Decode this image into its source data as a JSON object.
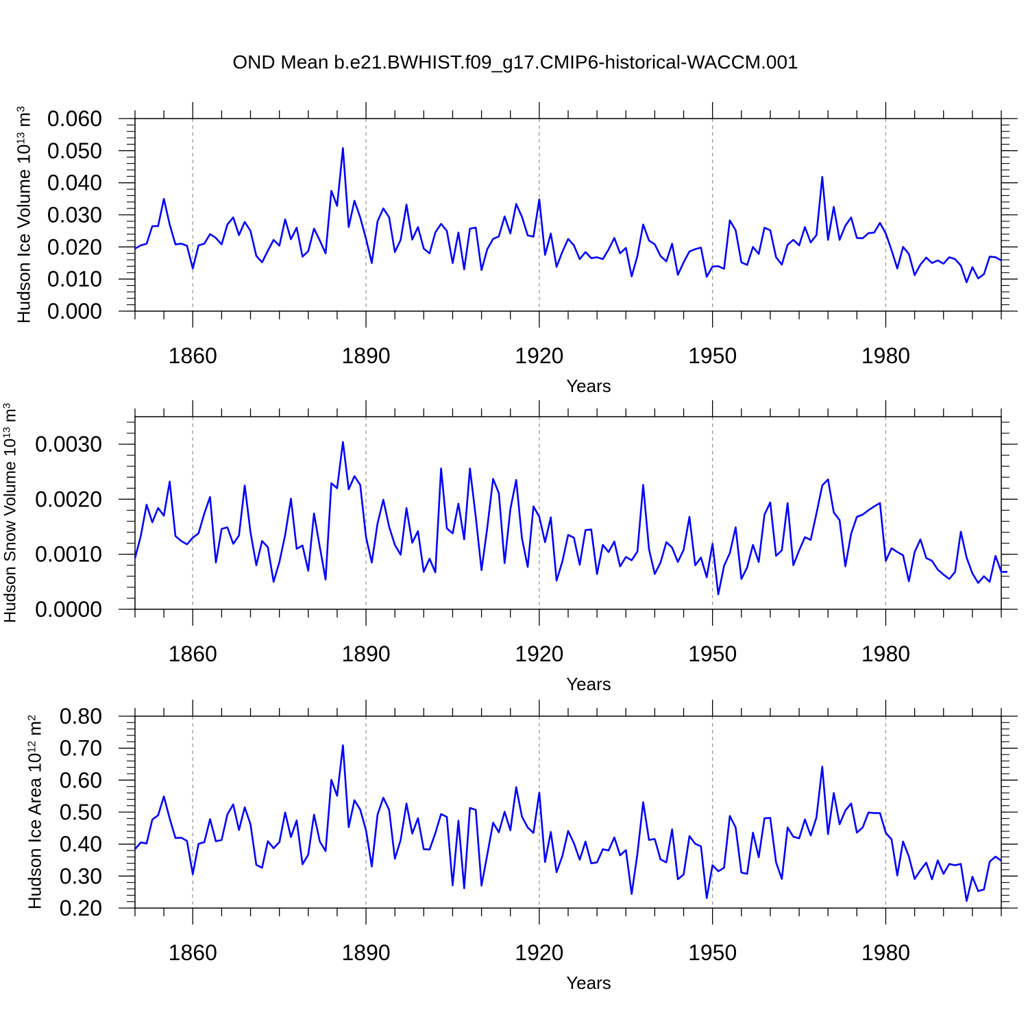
{
  "figure_title": "OND Mean b.e21.BWHIST.f09_g17.CMIP6-historical-WACCM.001",
  "line_color": "#0000ff",
  "grid_color": "#999999",
  "chart_data": [
    {
      "type": "line",
      "title": "",
      "xlabel": "Years",
      "ylabel": "Hudson Ice Volume 10",
      "ylabel_exp": "13",
      "ylabel_unit": "m",
      "ylabel_unit_exp": "3",
      "x_start": 1850,
      "x_step": 1,
      "xlim": [
        1850,
        2000
      ],
      "ylim": [
        0.0,
        0.06
      ],
      "xticks": [
        1860,
        1890,
        1920,
        1950,
        1980
      ],
      "xtick_labels": [
        "1860",
        "1890",
        "1920",
        "1950",
        "1980"
      ],
      "yticks": [
        0.0,
        0.01,
        0.02,
        0.03,
        0.04,
        0.05,
        0.06
      ],
      "ytick_labels": [
        "0.000",
        "0.010",
        "0.020",
        "0.030",
        "0.040",
        "0.050",
        "0.060"
      ],
      "grid": "vertical dashed at major x ticks",
      "series": [
        {
          "values": [
            0.0195,
            0.0205,
            0.021,
            0.0265,
            0.0265,
            0.035,
            0.027,
            0.0208,
            0.021,
            0.0204,
            0.0133,
            0.0205,
            0.021,
            0.024,
            0.0228,
            0.0208,
            0.027,
            0.0292,
            0.0237,
            0.0278,
            0.025,
            0.0172,
            0.0152,
            0.0188,
            0.0222,
            0.0204,
            0.0286,
            0.0224,
            0.026,
            0.017,
            0.0187,
            0.0257,
            0.022,
            0.018,
            0.0375,
            0.0328,
            0.0508,
            0.0262,
            0.0344,
            0.0292,
            0.0225,
            0.015,
            0.028,
            0.032,
            0.0292,
            0.0184,
            0.0222,
            0.0332,
            0.0223,
            0.0262,
            0.0195,
            0.018,
            0.0245,
            0.0272,
            0.025,
            0.015,
            0.0245,
            0.013,
            0.0257,
            0.026,
            0.0128,
            0.0193,
            0.0225,
            0.0233,
            0.0295,
            0.0242,
            0.0334,
            0.0294,
            0.0236,
            0.0232,
            0.0348,
            0.0175,
            0.0242,
            0.0138,
            0.0185,
            0.0225,
            0.0205,
            0.0162,
            0.0184,
            0.0165,
            0.0168,
            0.0162,
            0.0192,
            0.0228,
            0.018,
            0.0197,
            0.0108,
            0.0172,
            0.027,
            0.022,
            0.0208,
            0.0172,
            0.0155,
            0.021,
            0.0113,
            0.0152,
            0.0186,
            0.0193,
            0.0198,
            0.0107,
            0.0139,
            0.014,
            0.0132,
            0.0283,
            0.0252,
            0.0152,
            0.0144,
            0.02,
            0.0178,
            0.026,
            0.0252,
            0.0168,
            0.0145,
            0.0207,
            0.0222,
            0.0205,
            0.0262,
            0.0214,
            0.0237,
            0.0418,
            0.0222,
            0.0325,
            0.0222,
            0.0266,
            0.0292,
            0.0228,
            0.0227,
            0.0243,
            0.0245,
            0.0275,
            0.0242,
            0.019,
            0.0133,
            0.02,
            0.0178,
            0.0112,
            0.0145,
            0.0167,
            0.015,
            0.0158,
            0.0148,
            0.0168,
            0.0162,
            0.0142,
            0.009,
            0.0137,
            0.0102,
            0.0115,
            0.017,
            0.0168,
            0.0158
          ]
        }
      ]
    },
    {
      "type": "line",
      "title": "",
      "xlabel": "Years",
      "ylabel": "Hudson Snow Volume 10",
      "ylabel_exp": "13",
      "ylabel_unit": "m",
      "ylabel_unit_exp": "3",
      "x_start": 1850,
      "x_step": 1,
      "xlim": [
        1850,
        2000
      ],
      "ylim": [
        0.0,
        0.0035
      ],
      "xticks": [
        1860,
        1890,
        1920,
        1950,
        1980
      ],
      "xtick_labels": [
        "1860",
        "1890",
        "1920",
        "1950",
        "1980"
      ],
      "yticks": [
        0.0,
        0.001,
        0.002,
        0.003
      ],
      "ytick_labels": [
        "0.0000",
        "0.0010",
        "0.0020",
        "0.0030"
      ],
      "grid": "vertical dashed at major x ticks",
      "series": [
        {
          "values": [
            0.00093,
            0.00133,
            0.0019,
            0.00158,
            0.00184,
            0.0017,
            0.00232,
            0.00133,
            0.00124,
            0.00118,
            0.0013,
            0.00138,
            0.00174,
            0.00204,
            0.00085,
            0.00146,
            0.00149,
            0.00119,
            0.00134,
            0.00225,
            0.0014,
            0.0008,
            0.00124,
            0.00113,
            0.0005,
            0.00086,
            0.00135,
            0.00201,
            0.0011,
            0.00116,
            0.0007,
            0.00174,
            0.00113,
            0.00054,
            0.00229,
            0.0022,
            0.00304,
            0.00218,
            0.00242,
            0.00226,
            0.00131,
            0.00085,
            0.00156,
            0.00199,
            0.0015,
            0.00117,
            0.00099,
            0.00184,
            0.00121,
            0.00142,
            0.00068,
            0.00092,
            0.00067,
            0.00256,
            0.00147,
            0.00138,
            0.00192,
            0.00127,
            0.00256,
            0.00168,
            0.00071,
            0.00148,
            0.00237,
            0.00211,
            0.00084,
            0.00182,
            0.00235,
            0.00129,
            0.00077,
            0.00187,
            0.00168,
            0.00122,
            0.00167,
            0.00052,
            0.00087,
            0.00135,
            0.0013,
            0.00081,
            0.00144,
            0.00145,
            0.00064,
            0.00117,
            0.00104,
            0.00123,
            0.00078,
            0.00095,
            0.00089,
            0.00105,
            0.00226,
            0.00109,
            0.00064,
            0.00085,
            0.00122,
            0.00112,
            0.00086,
            0.00108,
            0.00168,
            0.0008,
            0.00094,
            0.00058,
            0.00119,
            0.00027,
            0.00079,
            0.00102,
            0.00149,
            0.00055,
            0.00076,
            0.00117,
            0.00086,
            0.00172,
            0.00194,
            0.00097,
            0.00107,
            0.00193,
            0.0008,
            0.00107,
            0.00131,
            0.00126,
            0.00174,
            0.00225,
            0.00236,
            0.00176,
            0.00162,
            0.00078,
            0.00137,
            0.00168,
            0.00172,
            0.0018,
            0.00187,
            0.00193,
            0.00088,
            0.00111,
            0.00104,
            0.00098,
            0.00051,
            0.00104,
            0.00127,
            0.00093,
            0.00088,
            0.00072,
            0.00063,
            0.00055,
            0.00068,
            0.00141,
            0.00094,
            0.00065,
            0.00048,
            0.0006,
            0.0005,
            0.00097,
            0.00068,
            0.00068
          ]
        }
      ]
    },
    {
      "type": "line",
      "title": "",
      "xlabel": "Years",
      "ylabel": "Hudson Ice Area 10",
      "ylabel_exp": "12",
      "ylabel_unit": "m",
      "ylabel_unit_exp": "2",
      "x_start": 1850,
      "x_step": 1,
      "xlim": [
        1850,
        2000
      ],
      "ylim": [
        0.2,
        0.8
      ],
      "xticks": [
        1860,
        1890,
        1920,
        1950,
        1980
      ],
      "xtick_labels": [
        "1860",
        "1890",
        "1920",
        "1950",
        "1980"
      ],
      "yticks": [
        0.2,
        0.3,
        0.4,
        0.5,
        0.6,
        0.7,
        0.8
      ],
      "ytick_labels": [
        "0.20",
        "0.30",
        "0.40",
        "0.50",
        "0.60",
        "0.70",
        "0.80"
      ],
      "grid": "vertical dashed at major x ticks",
      "series": [
        {
          "values": [
            0.384,
            0.405,
            0.402,
            0.477,
            0.49,
            0.549,
            0.48,
            0.419,
            0.42,
            0.41,
            0.306,
            0.401,
            0.406,
            0.478,
            0.409,
            0.413,
            0.493,
            0.524,
            0.444,
            0.515,
            0.462,
            0.335,
            0.326,
            0.409,
            0.387,
            0.406,
            0.499,
            0.422,
            0.474,
            0.337,
            0.367,
            0.492,
            0.408,
            0.378,
            0.601,
            0.551,
            0.709,
            0.453,
            0.537,
            0.508,
            0.443,
            0.33,
            0.492,
            0.545,
            0.507,
            0.354,
            0.413,
            0.527,
            0.433,
            0.481,
            0.384,
            0.383,
            0.434,
            0.494,
            0.485,
            0.271,
            0.473,
            0.262,
            0.513,
            0.507,
            0.27,
            0.367,
            0.467,
            0.437,
            0.501,
            0.443,
            0.578,
            0.486,
            0.452,
            0.435,
            0.561,
            0.344,
            0.438,
            0.312,
            0.363,
            0.441,
            0.403,
            0.351,
            0.408,
            0.34,
            0.343,
            0.384,
            0.38,
            0.421,
            0.365,
            0.381,
            0.244,
            0.37,
            0.531,
            0.413,
            0.416,
            0.352,
            0.343,
            0.446,
            0.29,
            0.305,
            0.425,
            0.401,
            0.393,
            0.231,
            0.334,
            0.315,
            0.326,
            0.488,
            0.452,
            0.311,
            0.307,
            0.436,
            0.359,
            0.481,
            0.482,
            0.343,
            0.291,
            0.452,
            0.423,
            0.418,
            0.477,
            0.427,
            0.483,
            0.642,
            0.431,
            0.56,
            0.462,
            0.505,
            0.527,
            0.436,
            0.452,
            0.499,
            0.497,
            0.497,
            0.435,
            0.415,
            0.302,
            0.408,
            0.361,
            0.291,
            0.318,
            0.342,
            0.29,
            0.349,
            0.307,
            0.338,
            0.334,
            0.338,
            0.222,
            0.298,
            0.253,
            0.258,
            0.345,
            0.361,
            0.348
          ]
        }
      ]
    }
  ]
}
